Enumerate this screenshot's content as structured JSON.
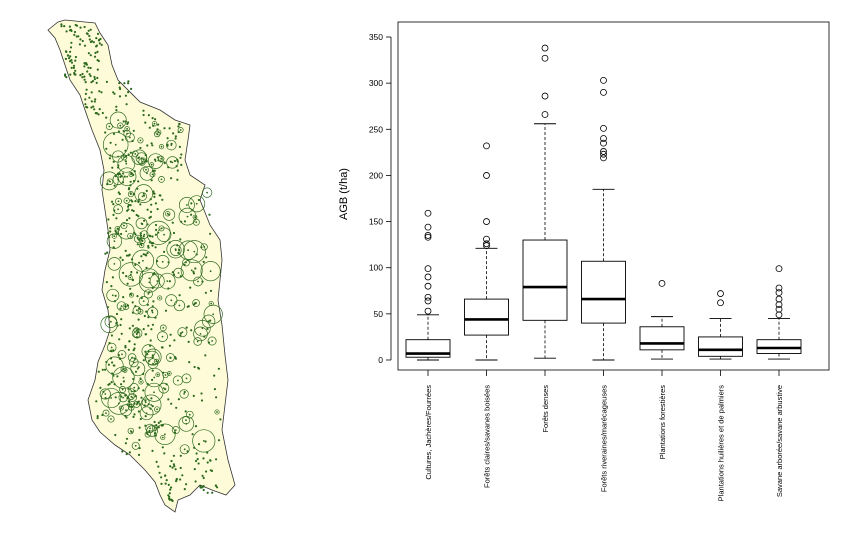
{
  "colors": {
    "map_fill": "#fefcd8",
    "map_outline": "#333333",
    "plot_marker": "#2d6a1f",
    "box_stroke": "#000000",
    "outlier": "#000000"
  },
  "map": {
    "description_name": "togo-plot-map",
    "marker_legend": ""
  },
  "chart_data": {
    "type": "boxplot",
    "ylabel": "AGB (t/ha)",
    "xlabel": "",
    "title": "",
    "ylim": [
      0,
      350
    ],
    "yticks": [
      0,
      50,
      100,
      150,
      200,
      250,
      300,
      350
    ],
    "grid": false,
    "categories": [
      "Cultures, Jachères/Fourrées",
      "Forêts claires/savanes boisées",
      "Forêts denses",
      "Forêts riveraines/marécageuses",
      "Plantations forestières",
      "Plantations huilières et de palmiers",
      "Savane arborée/savane arbustive"
    ],
    "boxes": [
      {
        "min": 0,
        "q1": 3,
        "median": 7,
        "q3": 22,
        "max": 49,
        "outliers": [
          53,
          64,
          68,
          80,
          90,
          99,
          133,
          135,
          144,
          159
        ]
      },
      {
        "min": 0,
        "q1": 27,
        "median": 44,
        "q3": 66,
        "max": 121,
        "outliers": [
          124,
          126,
          131,
          150,
          200,
          232
        ]
      },
      {
        "min": 2,
        "q1": 43,
        "median": 79,
        "q3": 130,
        "max": 256,
        "outliers": [
          266,
          286,
          327,
          338
        ]
      },
      {
        "min": 0,
        "q1": 40,
        "median": 66,
        "q3": 107,
        "max": 185,
        "outliers": [
          219,
          223,
          226,
          235,
          240,
          251,
          290,
          303
        ]
      },
      {
        "min": 1,
        "q1": 11,
        "median": 18,
        "q3": 36,
        "max": 47,
        "outliers": [
          83
        ]
      },
      {
        "min": 1,
        "q1": 4,
        "median": 11,
        "q3": 25,
        "max": 45,
        "outliers": [
          62,
          72
        ]
      },
      {
        "min": 1,
        "q1": 7,
        "median": 13,
        "q3": 22,
        "max": 45,
        "outliers": [
          49,
          55,
          60,
          66,
          73,
          78,
          99
        ]
      }
    ]
  }
}
